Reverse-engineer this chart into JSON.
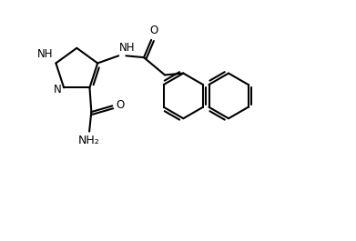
{
  "background": "#ffffff",
  "line_color": "#000000",
  "line_width": 1.5,
  "font_size": 8.5,
  "fig_width": 3.91,
  "fig_height": 2.65,
  "dpi": 100,
  "xlim": [
    0,
    10
  ],
  "ylim": [
    0,
    7
  ]
}
